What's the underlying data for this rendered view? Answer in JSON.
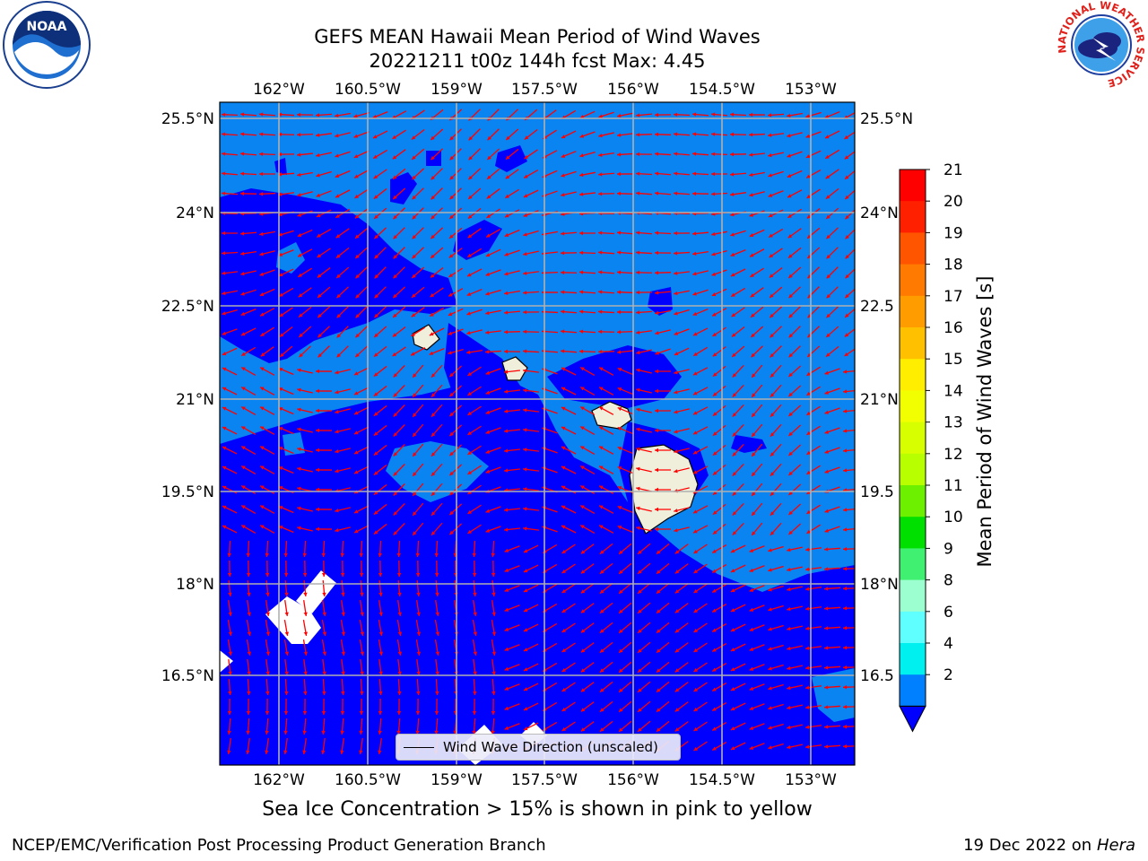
{
  "title_line1": "GEFS MEAN Hawaii Mean Period of Wind Waves",
  "title_line2": "20221211 t00z 144h fcst   Max: 4.45",
  "lon_ticks": [
    "162°W",
    "160.5°W",
    "159°W",
    "157.5°W",
    "156°W",
    "154.5°W",
    "153°W"
  ],
  "lat_ticks": [
    "25.5°N",
    "24°N",
    "22.5°N",
    "21°N",
    "19.5°N",
    "18°N",
    "16.5°N"
  ],
  "lat_ticks_right": [
    "25.5°N",
    "24°N",
    "22.5",
    "21°N",
    "19.5",
    "18°N",
    "16.5"
  ],
  "legend_label": "Wind Wave Direction (unscaled)",
  "subcaption": "Sea Ice Concentration > 15% is shown in pink to yellow",
  "footer_left": "NCEP/EMC/Verification Post Processing Product Generation Branch",
  "footer_right_text": "19 Dec 2022 on",
  "footer_right_italic": "Hera",
  "colorbar": {
    "label": "Mean Period of Wind Waves [s]",
    "ticks": [
      "21",
      "20",
      "19",
      "18",
      "17",
      "16",
      "15",
      "14",
      "13",
      "12",
      "11",
      "10",
      "9",
      "8",
      "6",
      "4",
      "2"
    ],
    "colors": [
      "#ff0000",
      "#ff2000",
      "#ff5500",
      "#ff7a00",
      "#ff9c00",
      "#ffc000",
      "#ffee00",
      "#f2ff00",
      "#d8ff00",
      "#b8ff00",
      "#6cf000",
      "#00e000",
      "#40f070",
      "#9cffcf",
      "#60ffff",
      "#00f0f0",
      "#0080ff"
    ],
    "under_color": "#0000ff"
  },
  "colors": {
    "deep_blue": "#0000ff",
    "light_blue": "#0a84f0",
    "land": "#f0efdc",
    "arrow": "#ff0000"
  },
  "logos": {
    "noaa_text": "NOAA",
    "nws_text": "NATIONAL WEATHER SERVICE"
  }
}
